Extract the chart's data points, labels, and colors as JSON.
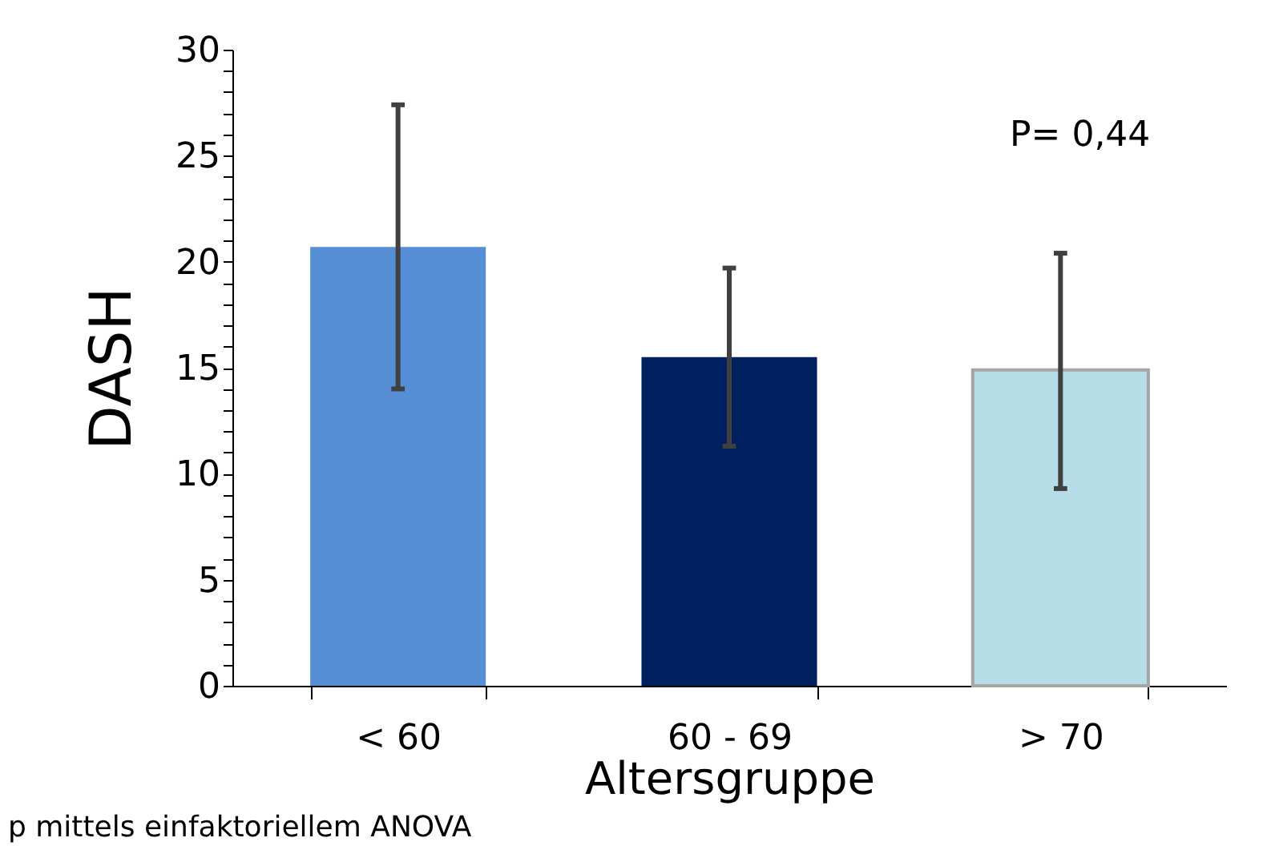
{
  "chart_data": {
    "type": "bar",
    "categories": [
      "< 60",
      "60 - 69",
      "> 70"
    ],
    "values": [
      20.7,
      15.5,
      14.9
    ],
    "colors": [
      "#558ed5",
      "#002060",
      "#b7dde8"
    ],
    "errors": [
      [
        14.0,
        27.4
      ],
      [
        11.3,
        19.7
      ],
      [
        9.3,
        20.4
      ]
    ],
    "xlabel": "Altersgruppe",
    "ylabel": "DASH",
    "ylim": [
      0,
      30
    ],
    "yticks": [
      0,
      {
        "value": 1,
        "label": null
      },
      {
        "value": 2,
        "label": null
      },
      {
        "value": 3,
        "label": null
      },
      {
        "value": 4,
        "label": null
      },
      5,
      {
        "value": 6,
        "label": null
      },
      {
        "value": 7,
        "label": null
      },
      {
        "value": 8,
        "label": null
      },
      {
        "value": 9,
        "label": null
      },
      10,
      {
        "value": 11,
        "label": null
      },
      {
        "value": 12,
        "label": null
      },
      {
        "value": 13,
        "label": null
      },
      {
        "value": 14,
        "label": null
      },
      15,
      {
        "value": 16,
        "label": null
      },
      {
        "value": 17,
        "label": null
      },
      {
        "value": 18,
        "label": null
      },
      {
        "value": 19,
        "label": null
      },
      20,
      {
        "value": 21,
        "label": null
      },
      {
        "value": 22,
        "label": null
      },
      {
        "value": 23,
        "label": null
      },
      {
        "value": 24,
        "label": null
      },
      25,
      {
        "value": 26,
        "label": null
      },
      {
        "value": 27,
        "label": null
      },
      {
        "value": 28,
        "label": null
      },
      {
        "value": 29,
        "label": null
      },
      30
    ],
    "annotations": [
      "P= 0,44",
      "p mittels einfaktoriellem ANOVA"
    ],
    "grid": false
  }
}
